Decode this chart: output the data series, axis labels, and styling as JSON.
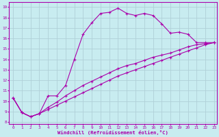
{
  "xlabel": "Windchill (Refroidissement éolien,°C)",
  "bg_color": "#c8ecf0",
  "grid_color": "#b0d0d8",
  "line_color": "#aa00aa",
  "spine_color": "#aa00aa",
  "xlim": [
    -0.5,
    23.3
  ],
  "ylim": [
    7.8,
    19.5
  ],
  "xticks": [
    0,
    1,
    2,
    3,
    4,
    5,
    6,
    7,
    8,
    9,
    10,
    11,
    12,
    13,
    14,
    15,
    16,
    17,
    18,
    19,
    20,
    21,
    22,
    23
  ],
  "yticks": [
    8,
    9,
    10,
    11,
    12,
    13,
    14,
    15,
    16,
    17,
    18,
    19
  ],
  "line1_x": [
    0,
    1,
    2,
    3,
    4,
    5,
    6,
    7,
    8,
    9,
    10,
    11,
    12,
    13,
    14,
    15,
    16,
    17,
    18,
    19,
    20,
    21,
    22,
    23
  ],
  "line1_y": [
    10.3,
    8.9,
    8.5,
    8.8,
    10.5,
    10.5,
    11.5,
    14.0,
    16.4,
    17.5,
    18.4,
    18.5,
    18.9,
    18.4,
    18.2,
    18.4,
    18.2,
    17.4,
    16.5,
    16.6,
    16.4,
    15.6,
    15.6,
    15.6
  ],
  "line2_x": [
    0,
    1,
    2,
    3,
    4,
    5,
    6,
    7,
    8,
    9,
    10,
    11,
    12,
    13,
    14,
    15,
    16,
    17,
    18,
    19,
    20,
    21,
    22,
    23
  ],
  "line2_y": [
    10.3,
    8.9,
    8.5,
    8.8,
    9.4,
    9.9,
    10.5,
    11.0,
    11.5,
    11.9,
    12.3,
    12.7,
    13.1,
    13.4,
    13.6,
    13.9,
    14.2,
    14.4,
    14.6,
    14.9,
    15.2,
    15.4,
    15.5,
    15.6
  ],
  "line3_x": [
    0,
    1,
    2,
    3,
    4,
    5,
    6,
    7,
    8,
    9,
    10,
    11,
    12,
    13,
    14,
    15,
    16,
    17,
    18,
    19,
    20,
    21,
    22,
    23
  ],
  "line3_y": [
    10.3,
    8.9,
    8.5,
    8.8,
    9.2,
    9.6,
    10.0,
    10.4,
    10.8,
    11.2,
    11.6,
    12.0,
    12.4,
    12.7,
    13.0,
    13.3,
    13.6,
    13.9,
    14.2,
    14.5,
    14.8,
    15.1,
    15.4,
    15.6
  ],
  "label_fontsize": 5.0,
  "tick_fontsize": 4.3,
  "xlabel_fontsize": 5.2
}
